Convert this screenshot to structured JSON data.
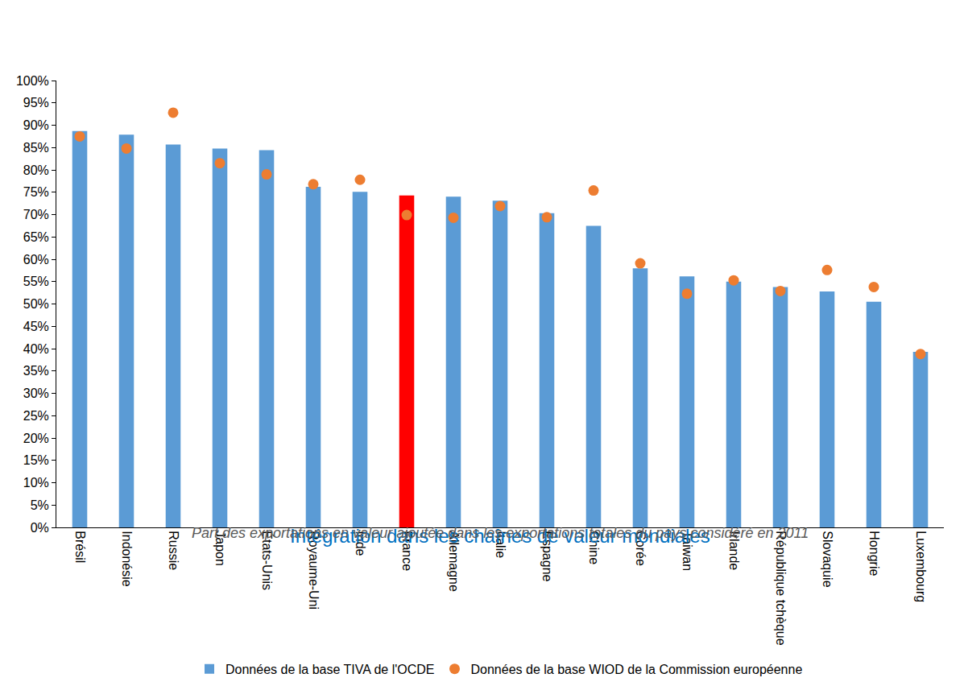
{
  "chart_data": {
    "type": "bar",
    "title": "Intégration dans les chaînes de valeur mondiales",
    "subtitle": "Part des exportations en valeur ajoutée dans les exportations totales du pays considéré en 2011",
    "categories": [
      "Brésil",
      "Indonésie",
      "Russie",
      "Japon",
      "États-Unis",
      "Royaume-Uni",
      "Inde",
      "France",
      "Allemagne",
      "Italie",
      "Espagne",
      "Chine",
      "Corée",
      "Taiwan",
      "Irlande",
      "République tchèque",
      "Slovaquie",
      "Hongrie",
      "Luxembourg"
    ],
    "series": [
      {
        "name": "Données de la base TIVA de l'OCDE",
        "type": "bar",
        "color": "#5b9bd5",
        "colors": [
          "#5b9bd5",
          "#5b9bd5",
          "#5b9bd5",
          "#5b9bd5",
          "#5b9bd5",
          "#5b9bd5",
          "#5b9bd5",
          "#ff0000",
          "#5b9bd5",
          "#5b9bd5",
          "#5b9bd5",
          "#5b9bd5",
          "#5b9bd5",
          "#5b9bd5",
          "#5b9bd5",
          "#5b9bd5",
          "#5b9bd5",
          "#5b9bd5",
          "#5b9bd5"
        ],
        "values": [
          88.7,
          87.9,
          85.7,
          84.8,
          84.4,
          76.2,
          75.1,
          74.3,
          74.0,
          73.1,
          70.3,
          67.5,
          58.0,
          56.2,
          55.0,
          53.8,
          52.8,
          50.5,
          39.3
        ]
      },
      {
        "name": "Données de la base WIOD de la Commission européenne",
        "type": "scatter",
        "color": "#ed7d31",
        "marker": "circle",
        "values": [
          87.5,
          84.8,
          92.8,
          81.5,
          79.0,
          76.8,
          77.8,
          69.9,
          69.3,
          71.9,
          69.4,
          75.4,
          59.1,
          52.3,
          55.3,
          52.9,
          57.6,
          53.8,
          38.8
        ]
      }
    ],
    "ylim": [
      0,
      100
    ],
    "yticks": [
      {
        "value": 0,
        "label": "0%"
      },
      {
        "value": 5,
        "label": "5%"
      },
      {
        "value": 10,
        "label": "10%"
      },
      {
        "value": 15,
        "label": "15%"
      },
      {
        "value": 20,
        "label": "20%"
      },
      {
        "value": 25,
        "label": "25%"
      },
      {
        "value": 30,
        "label": "30%"
      },
      {
        "value": 35,
        "label": "35%"
      },
      {
        "value": 40,
        "label": "40%"
      },
      {
        "value": 45,
        "label": "45%"
      },
      {
        "value": 50,
        "label": "50%"
      },
      {
        "value": 55,
        "label": "55%"
      },
      {
        "value": 60,
        "label": "60%"
      },
      {
        "value": 65,
        "label": "65%"
      },
      {
        "value": 70,
        "label": "70%"
      },
      {
        "value": 75,
        "label": "75%"
      },
      {
        "value": 80,
        "label": "80%"
      },
      {
        "value": 85,
        "label": "85%"
      },
      {
        "value": 90,
        "label": "90%"
      },
      {
        "value": 95,
        "label": "95%"
      },
      {
        "value": 100,
        "label": "100%"
      }
    ],
    "grid": false,
    "legend": "bottom"
  }
}
